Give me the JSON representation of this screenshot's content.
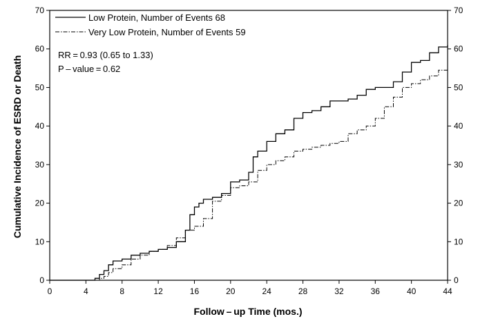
{
  "chart_data": {
    "type": "line",
    "xlabel": "Follow – up Time (mos.)",
    "ylabel": "Cumulative Incidence of ESRD or Death",
    "xlim": [
      0,
      44
    ],
    "ylim": [
      0,
      70
    ],
    "xticks": [
      0,
      4,
      8,
      12,
      16,
      20,
      24,
      28,
      32,
      36,
      40,
      44
    ],
    "yticks": [
      0,
      10,
      20,
      30,
      40,
      50,
      60,
      70
    ],
    "grid": false,
    "legend": "top-left",
    "annotations": [
      "RR = 0.93 (0.65 to 1.33)",
      "P – value = 0.62"
    ],
    "series": [
      {
        "name": "Low Protein, Number of Events 68",
        "style": "solid",
        "x": [
          0,
          4,
          5,
          5.5,
          6,
          6.5,
          7,
          8,
          9,
          10,
          11,
          12,
          13,
          14,
          15,
          15.5,
          16,
          16.5,
          17,
          18,
          19,
          20,
          21,
          22,
          22.5,
          23,
          24,
          25,
          26,
          27,
          28,
          29,
          30,
          31,
          32,
          33,
          34,
          35,
          36,
          37,
          38,
          39,
          40,
          41,
          42,
          43,
          44
        ],
        "y": [
          0,
          0,
          0.5,
          1.5,
          2.5,
          4,
          5,
          5.5,
          6.5,
          7,
          7.5,
          8,
          8.5,
          10,
          13,
          17,
          19,
          20,
          21,
          21.5,
          22.5,
          25.5,
          26,
          28,
          32,
          33.5,
          36,
          38,
          39,
          42,
          43.5,
          44,
          45,
          46.5,
          46.5,
          47,
          48,
          49.5,
          50,
          50,
          51.5,
          54,
          56.5,
          57,
          59,
          60.5,
          61
        ]
      },
      {
        "name": "Very Low Protein, Number of Events 59",
        "style": "dash-dot",
        "x": [
          0,
          5,
          5.5,
          6,
          6.5,
          7,
          8,
          9,
          10,
          11,
          12,
          13,
          14,
          15,
          16,
          17,
          18,
          19,
          20,
          21,
          22,
          23,
          24,
          25,
          26,
          27,
          28,
          29,
          30,
          31,
          32,
          33,
          34,
          35,
          36,
          37,
          38,
          39,
          40,
          41,
          42,
          43,
          44
        ],
        "y": [
          0,
          0,
          0.5,
          1,
          2,
          3,
          4,
          5.5,
          6.5,
          7.5,
          8,
          9,
          11,
          13,
          14,
          16,
          20.5,
          22,
          24,
          24.5,
          25.5,
          28.5,
          30,
          31,
          32,
          33.5,
          34,
          34.5,
          35,
          35.5,
          36,
          38,
          39,
          40,
          42,
          45,
          47.5,
          50,
          51,
          52,
          53,
          54.5,
          55
        ]
      }
    ]
  }
}
